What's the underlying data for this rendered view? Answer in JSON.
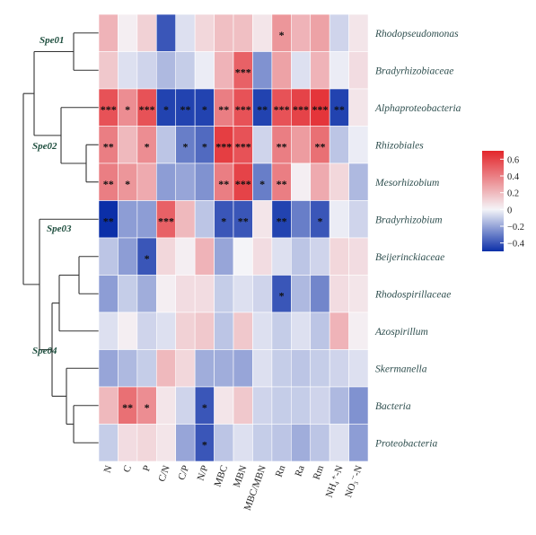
{
  "chart_data": {
    "type": "heatmap",
    "title": "",
    "xlabel": "",
    "ylabel": "",
    "columns": [
      "N",
      "C",
      "P",
      "C/N",
      "C/P",
      "N/P",
      "MBC",
      "MBN",
      "MBC/MBN",
      "Rn",
      "Ra",
      "Rm",
      "NH₄⁺-N",
      "NO₃⁻-N"
    ],
    "rows": [
      "Rhodopseudomonas",
      "Bradyrhizobiaceae",
      "Alphaproteobacteria",
      "Rhizobiales",
      "Mesorhizobium",
      "Bradyrhizobium",
      "Beijerinckiaceae",
      "Rhodospirillaceae",
      "Azospirillum",
      "Skermanella",
      "Bacteria",
      "Proteobacteria"
    ],
    "clusters": [
      {
        "name": "Spe01",
        "rows": [
          "Rhodopseudomonas",
          "Bradyrhizobiaceae"
        ]
      },
      {
        "name": "Spe02",
        "rows": [
          "Alphaproteobacteria",
          "Rhizobiales",
          "Mesorhizobium"
        ]
      },
      {
        "name": "Spe03",
        "rows": [
          "Bradyrhizobium"
        ]
      },
      {
        "name": "Spe04",
        "rows": [
          "Beijerinckiaceae",
          "Rhodospirillaceae",
          "Azospirillum",
          "Skermanella",
          "Bacteria",
          "Proteobacteria"
        ]
      }
    ],
    "values": [
      [
        0.22,
        0.02,
        0.12,
        -0.4,
        -0.05,
        0.1,
        0.18,
        0.18,
        0.05,
        0.32,
        0.22,
        0.28,
        -0.08,
        0.05
      ],
      [
        0.15,
        -0.05,
        -0.08,
        -0.15,
        -0.1,
        -0.02,
        0.22,
        0.5,
        -0.25,
        0.28,
        -0.05,
        0.22,
        -0.02,
        0.08
      ],
      [
        0.55,
        0.35,
        0.55,
        -0.45,
        -0.45,
        -0.45,
        0.4,
        0.55,
        -0.45,
        0.55,
        0.6,
        0.65,
        -0.45,
        0.05
      ],
      [
        0.4,
        0.2,
        0.35,
        -0.12,
        -0.3,
        -0.35,
        0.62,
        0.55,
        -0.08,
        0.4,
        0.3,
        0.45,
        -0.12,
        -0.02
      ],
      [
        0.4,
        0.32,
        0.25,
        -0.22,
        -0.2,
        -0.25,
        0.4,
        0.6,
        -0.3,
        0.4,
        0.02,
        0.25,
        0.1,
        -0.15
      ],
      [
        -0.5,
        -0.22,
        -0.22,
        0.5,
        0.2,
        -0.12,
        -0.4,
        -0.4,
        0.05,
        -0.45,
        -0.3,
        -0.4,
        -0.02,
        -0.08
      ],
      [
        -0.12,
        -0.22,
        -0.4,
        0.1,
        0.02,
        0.22,
        -0.2,
        0.0,
        0.08,
        -0.05,
        -0.12,
        -0.08,
        0.1,
        0.08
      ],
      [
        -0.22,
        -0.1,
        -0.18,
        0.02,
        0.08,
        0.08,
        -0.1,
        -0.05,
        -0.08,
        -0.4,
        -0.15,
        -0.28,
        0.08,
        0.05
      ],
      [
        -0.05,
        0.02,
        -0.08,
        -0.05,
        0.12,
        0.15,
        -0.12,
        0.15,
        -0.05,
        -0.1,
        -0.05,
        -0.12,
        0.22,
        0.02
      ],
      [
        -0.2,
        -0.15,
        -0.1,
        0.2,
        0.1,
        -0.18,
        -0.18,
        -0.2,
        -0.05,
        -0.1,
        -0.12,
        -0.1,
        -0.08,
        -0.05
      ],
      [
        0.2,
        0.45,
        0.35,
        0.05,
        -0.08,
        -0.4,
        0.05,
        0.15,
        -0.08,
        -0.1,
        -0.1,
        -0.08,
        -0.15,
        -0.25
      ],
      [
        -0.1,
        0.08,
        0.1,
        0.05,
        -0.2,
        -0.4,
        -0.12,
        -0.05,
        -0.1,
        -0.12,
        -0.18,
        -0.12,
        -0.05,
        -0.22
      ]
    ],
    "significance": [
      [
        "",
        "",
        "",
        "",
        "",
        "",
        "",
        "",
        "",
        "*",
        "",
        "",
        "",
        ""
      ],
      [
        "",
        "",
        "",
        "",
        "",
        "",
        "",
        "***",
        "",
        "",
        "",
        "",
        "",
        ""
      ],
      [
        "***",
        "*",
        "***",
        "*",
        "**",
        "*",
        "**",
        "***",
        "**",
        "***",
        "***",
        "***",
        "**",
        ""
      ],
      [
        "**",
        "",
        "*",
        "",
        "*",
        "*",
        "***",
        "***",
        "",
        "**",
        "",
        "**",
        "",
        ""
      ],
      [
        "**",
        "*",
        "",
        "",
        "",
        "",
        "**",
        "***",
        "*",
        "**",
        "",
        "",
        "",
        ""
      ],
      [
        "**",
        "",
        "",
        "***",
        "",
        "",
        "*",
        "**",
        "",
        "**",
        "",
        "*",
        "",
        ""
      ],
      [
        "",
        "",
        "*",
        "",
        "",
        "",
        "",
        "",
        "",
        "",
        "",
        "",
        "",
        ""
      ],
      [
        "",
        "",
        "",
        "",
        "",
        "",
        "",
        "",
        "",
        "*",
        "",
        "",
        "",
        ""
      ],
      [
        "",
        "",
        "",
        "",
        "",
        "",
        "",
        "",
        "",
        "",
        "",
        "",
        "",
        ""
      ],
      [
        "",
        "",
        "",
        "",
        "",
        "",
        "",
        "",
        "",
        "",
        "",
        "",
        "",
        ""
      ],
      [
        "",
        "**",
        "*",
        "",
        "",
        "*",
        "",
        "",
        "",
        "",
        "",
        "",
        "",
        ""
      ],
      [
        "",
        "",
        "",
        "",
        "",
        "*",
        "",
        "",
        "",
        "",
        "",
        "",
        "",
        ""
      ]
    ],
    "colorbar": {
      "ticks": [
        0.6,
        0.4,
        0.2,
        0,
        -0.2,
        -0.4
      ],
      "tick_labels": [
        "0.6",
        "0.4",
        "0.2",
        "0",
        "−0.2",
        "−0.4"
      ],
      "range": [
        -0.5,
        0.7
      ],
      "colors": {
        "low": "#0b2fa8",
        "mid": "#f4f4f8",
        "high": "#e3262b"
      }
    }
  }
}
